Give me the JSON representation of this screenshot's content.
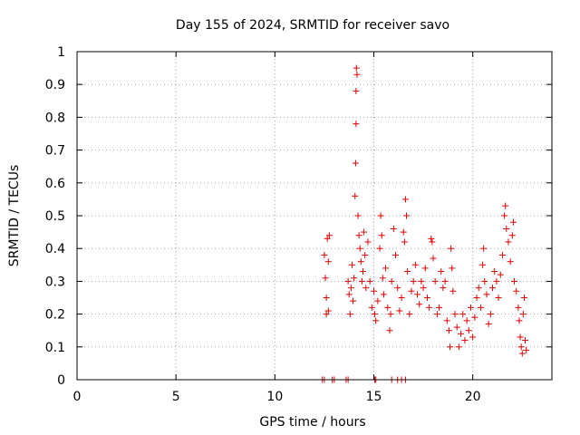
{
  "chart_data": {
    "type": "scatter",
    "title": "Day 155 of 2024, SRMTID for receiver savo",
    "xlabel": "GPS time / hours",
    "ylabel": "SRMTID / TECUs",
    "xlim": [
      0,
      24
    ],
    "ylim": [
      0,
      1
    ],
    "xticks": [
      0,
      5,
      10,
      15,
      20
    ],
    "xtick_labels": [
      "0",
      "5",
      "10",
      "15",
      "20"
    ],
    "yticks": [
      0,
      0.1,
      0.2,
      0.3,
      0.4,
      0.5,
      0.6,
      0.7,
      0.8,
      0.9,
      1
    ],
    "ytick_labels": [
      "0",
      "0.1",
      "0.2",
      "0.3",
      "0.4",
      "0.5",
      "0.6",
      "0.7",
      "0.8",
      "0.9",
      "1"
    ],
    "grid": true,
    "marker": "+",
    "color": "#e00000",
    "series": [
      {
        "name": "SRMTID",
        "points": [
          [
            12.5,
            0.38
          ],
          [
            12.55,
            0.31
          ],
          [
            12.6,
            0.25
          ],
          [
            12.6,
            0.2
          ],
          [
            12.65,
            0.43
          ],
          [
            12.7,
            0.36
          ],
          [
            12.75,
            0.44
          ],
          [
            12.7,
            0.21
          ],
          [
            13.7,
            0.3
          ],
          [
            13.75,
            0.26
          ],
          [
            13.8,
            0.2
          ],
          [
            13.85,
            0.28
          ],
          [
            13.9,
            0.35
          ],
          [
            13.95,
            0.24
          ],
          [
            14.0,
            0.31
          ],
          [
            14.05,
            0.56
          ],
          [
            14.08,
            0.66
          ],
          [
            14.1,
            0.78
          ],
          [
            14.1,
            0.88
          ],
          [
            14.12,
            0.95
          ],
          [
            14.15,
            0.93
          ],
          [
            14.2,
            0.5
          ],
          [
            14.25,
            0.44
          ],
          [
            14.3,
            0.4
          ],
          [
            14.35,
            0.36
          ],
          [
            14.4,
            0.3
          ],
          [
            14.45,
            0.33
          ],
          [
            14.5,
            0.45
          ],
          [
            14.55,
            0.38
          ],
          [
            14.6,
            0.28
          ],
          [
            14.7,
            0.42
          ],
          [
            14.8,
            0.3
          ],
          [
            14.9,
            0.22
          ],
          [
            15.0,
            0.27
          ],
          [
            15.05,
            0.2
          ],
          [
            15.1,
            0.18
          ],
          [
            15.2,
            0.24
          ],
          [
            15.3,
            0.4
          ],
          [
            15.35,
            0.5
          ],
          [
            15.4,
            0.44
          ],
          [
            15.45,
            0.31
          ],
          [
            15.5,
            0.26
          ],
          [
            15.6,
            0.34
          ],
          [
            15.7,
            0.22
          ],
          [
            15.8,
            0.15
          ],
          [
            15.85,
            0.2
          ],
          [
            15.9,
            0.3
          ],
          [
            16.0,
            0.46
          ],
          [
            16.1,
            0.38
          ],
          [
            16.2,
            0.28
          ],
          [
            16.3,
            0.21
          ],
          [
            16.4,
            0.25
          ],
          [
            16.5,
            0.45
          ],
          [
            16.55,
            0.42
          ],
          [
            16.6,
            0.55
          ],
          [
            16.65,
            0.5
          ],
          [
            16.7,
            0.33
          ],
          [
            16.8,
            0.2
          ],
          [
            16.9,
            0.27
          ],
          [
            17.0,
            0.3
          ],
          [
            17.1,
            0.35
          ],
          [
            17.2,
            0.26
          ],
          [
            17.3,
            0.23
          ],
          [
            17.4,
            0.3
          ],
          [
            17.5,
            0.28
          ],
          [
            17.6,
            0.34
          ],
          [
            17.7,
            0.25
          ],
          [
            17.8,
            0.22
          ],
          [
            17.9,
            0.43
          ],
          [
            17.95,
            0.42
          ],
          [
            18.0,
            0.37
          ],
          [
            18.1,
            0.3
          ],
          [
            18.2,
            0.2
          ],
          [
            18.3,
            0.22
          ],
          [
            18.4,
            0.33
          ],
          [
            18.5,
            0.28
          ],
          [
            18.6,
            0.3
          ],
          [
            18.7,
            0.18
          ],
          [
            18.8,
            0.15
          ],
          [
            18.85,
            0.1
          ],
          [
            18.9,
            0.4
          ],
          [
            18.95,
            0.34
          ],
          [
            19.0,
            0.27
          ],
          [
            19.1,
            0.2
          ],
          [
            19.2,
            0.16
          ],
          [
            19.3,
            0.1
          ],
          [
            19.4,
            0.14
          ],
          [
            19.5,
            0.2
          ],
          [
            19.6,
            0.12
          ],
          [
            19.7,
            0.18
          ],
          [
            19.8,
            0.15
          ],
          [
            19.9,
            0.22
          ],
          [
            20.0,
            0.13
          ],
          [
            20.1,
            0.19
          ],
          [
            20.2,
            0.25
          ],
          [
            20.3,
            0.28
          ],
          [
            20.4,
            0.22
          ],
          [
            20.5,
            0.35
          ],
          [
            20.55,
            0.4
          ],
          [
            20.6,
            0.3
          ],
          [
            20.7,
            0.26
          ],
          [
            20.8,
            0.17
          ],
          [
            20.9,
            0.2
          ],
          [
            21.0,
            0.28
          ],
          [
            21.1,
            0.33
          ],
          [
            21.2,
            0.3
          ],
          [
            21.3,
            0.25
          ],
          [
            21.4,
            0.32
          ],
          [
            21.5,
            0.38
          ],
          [
            21.6,
            0.5
          ],
          [
            21.65,
            0.53
          ],
          [
            21.7,
            0.46
          ],
          [
            21.8,
            0.42
          ],
          [
            21.9,
            0.36
          ],
          [
            22.0,
            0.44
          ],
          [
            22.05,
            0.48
          ],
          [
            22.1,
            0.3
          ],
          [
            22.2,
            0.27
          ],
          [
            22.3,
            0.22
          ],
          [
            22.35,
            0.18
          ],
          [
            22.4,
            0.13
          ],
          [
            22.45,
            0.1
          ],
          [
            22.5,
            0.08
          ],
          [
            22.55,
            0.2
          ],
          [
            22.6,
            0.25
          ],
          [
            22.65,
            0.12
          ],
          [
            22.7,
            0.09
          ]
        ]
      }
    ],
    "zero_values_x": [
      12.4,
      12.5,
      12.9,
      13.0,
      13.6,
      13.7,
      15.05,
      15.1,
      15.9,
      16.2,
      16.4,
      16.6
    ]
  }
}
